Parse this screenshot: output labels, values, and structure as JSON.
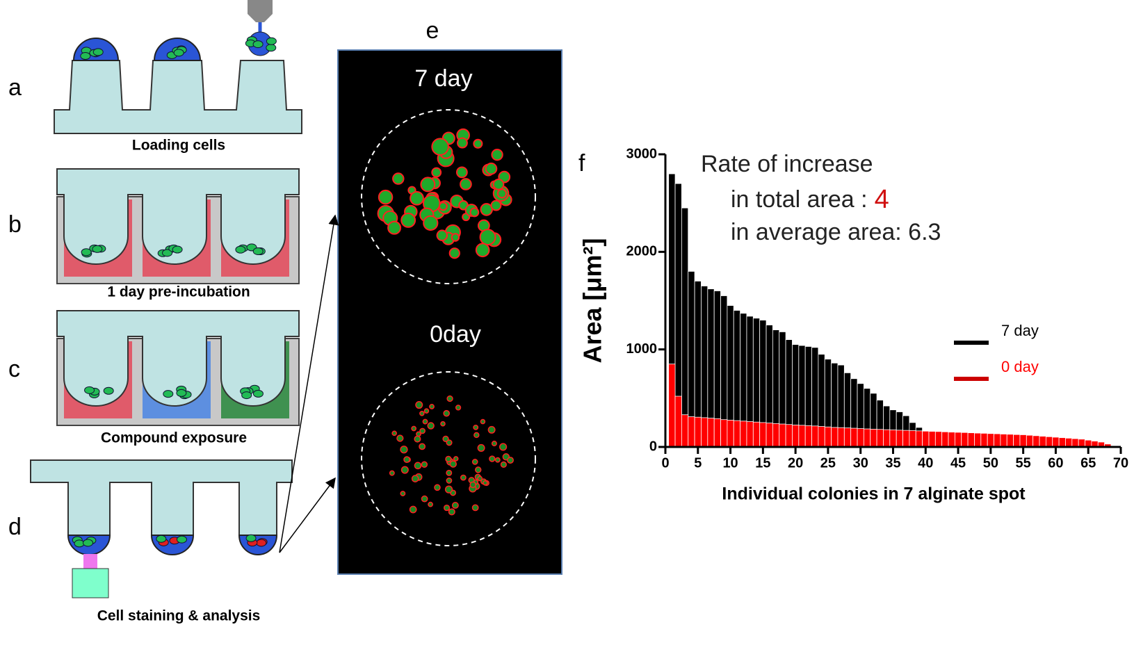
{
  "labels": {
    "panel_a": "a",
    "panel_b": "b",
    "panel_c": "c",
    "panel_d": "d",
    "panel_e": "e",
    "panel_f": "f",
    "caption_a": "Loading cells",
    "caption_b": "1 day pre-incubation",
    "caption_c": "Compound exposure",
    "caption_d": "Cell staining  & analysis",
    "image_top": "7 day",
    "image_bottom": "0day"
  },
  "chart_data": {
    "type": "bar",
    "xlabel": "Individual colonies in 7 alginate spot",
    "ylabel": "Area [μm²]",
    "annotations": [
      "Rate of increase",
      "in total area :",
      "4",
      "in average area: 6.3"
    ],
    "xlim": [
      0,
      70
    ],
    "xticks": [
      0,
      5,
      10,
      15,
      20,
      25,
      30,
      35,
      40,
      45,
      50,
      55,
      60,
      65,
      70
    ],
    "ylim": [
      0,
      3000
    ],
    "yticks": [
      0,
      1000,
      2000,
      3000
    ],
    "legend": "right",
    "series": [
      {
        "name": "7 day",
        "color": "#000000",
        "x": [
          1,
          2,
          3,
          4,
          5,
          6,
          7,
          8,
          9,
          10,
          11,
          12,
          13,
          14,
          15,
          16,
          17,
          18,
          19,
          20,
          21,
          22,
          23,
          24,
          25,
          26,
          27,
          28,
          29,
          30,
          31,
          32,
          33,
          34,
          35,
          36,
          37,
          38,
          39,
          40,
          41
        ],
        "values": [
          2800,
          2700,
          2450,
          1800,
          1700,
          1650,
          1620,
          1600,
          1550,
          1450,
          1400,
          1370,
          1340,
          1320,
          1300,
          1250,
          1200,
          1180,
          1100,
          1050,
          1040,
          1030,
          1020,
          950,
          900,
          860,
          840,
          760,
          700,
          650,
          600,
          550,
          480,
          420,
          380,
          360,
          320,
          250,
          200,
          150,
          120
        ]
      },
      {
        "name": "0 day",
        "color": "#ff0000",
        "x": [
          1,
          2,
          3,
          4,
          5,
          6,
          7,
          8,
          9,
          10,
          11,
          12,
          13,
          14,
          15,
          16,
          17,
          18,
          19,
          20,
          21,
          22,
          23,
          24,
          25,
          26,
          27,
          28,
          29,
          30,
          31,
          32,
          33,
          34,
          35,
          36,
          37,
          38,
          39,
          40,
          41,
          42,
          43,
          44,
          45,
          46,
          47,
          48,
          49,
          50,
          51,
          52,
          53,
          54,
          55,
          56,
          57,
          58,
          59,
          60,
          61,
          62,
          63,
          64,
          65,
          66,
          67,
          68
        ],
        "values": [
          850,
          520,
          330,
          310,
          305,
          300,
          295,
          290,
          280,
          275,
          270,
          265,
          260,
          255,
          250,
          245,
          240,
          235,
          230,
          225,
          222,
          218,
          215,
          210,
          205,
          200,
          198,
          195,
          192,
          188,
          185,
          182,
          180,
          177,
          175,
          172,
          170,
          168,
          165,
          162,
          160,
          158,
          155,
          152,
          150,
          148,
          145,
          142,
          140,
          137,
          135,
          132,
          130,
          127,
          125,
          120,
          115,
          110,
          105,
          100,
          95,
          90,
          85,
          80,
          70,
          60,
          50,
          30
        ]
      }
    ]
  }
}
